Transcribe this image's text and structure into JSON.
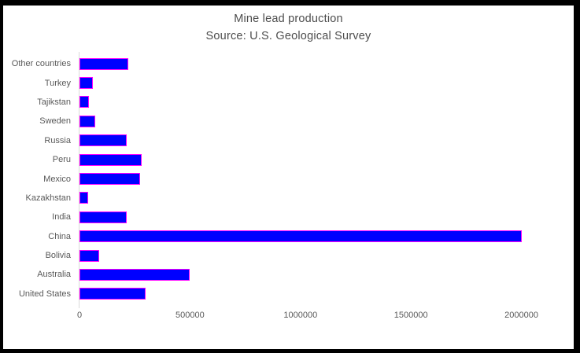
{
  "frame": {
    "border_color": "#000000",
    "background": "#ffffff"
  },
  "chart_data": {
    "type": "bar",
    "orientation": "horizontal",
    "title": "Mine lead production",
    "subtitle": "Source: U.S. Geological Survey",
    "categories_top_to_bottom": [
      "Other countries",
      "Turkey",
      "Tajikstan",
      "Sweden",
      "Russia",
      "Peru",
      "Mexico",
      "Kazakhstan",
      "India",
      "China",
      "Bolivia",
      "Australia",
      "United States"
    ],
    "values": [
      220000,
      60000,
      44000,
      71000,
      215000,
      280000,
      275000,
      40000,
      215000,
      2000000,
      90000,
      500000,
      300000
    ],
    "x_axis": {
      "min": 0,
      "max": 2000000,
      "ticks": [
        0,
        500000,
        1000000,
        1500000,
        2000000
      ],
      "tick_labels": [
        "0",
        "500000",
        "1000000",
        "1500000",
        "2000000"
      ]
    },
    "grid": false,
    "legend": false,
    "colors": {
      "bar_fill": "#0000ff",
      "bar_border": "#ff00ff",
      "axis_line": "#d9d9d9",
      "axis_text": "#595959",
      "title_text": "#4d4d4d"
    }
  }
}
